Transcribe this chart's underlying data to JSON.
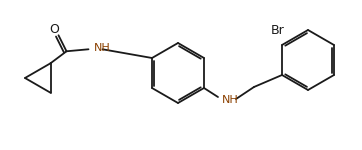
{
  "bg_color": "#ffffff",
  "line_color": "#1a1a1a",
  "nh_color": "#8B4000",
  "text_color": "#1a1a1a",
  "lw": 1.3,
  "figsize": [
    3.62,
    1.5
  ],
  "dpi": 100,
  "o_label": "O",
  "nh_label": "NH",
  "br_label": "Br",
  "o_fontsize": 9,
  "nh_fontsize": 8,
  "br_fontsize": 9
}
